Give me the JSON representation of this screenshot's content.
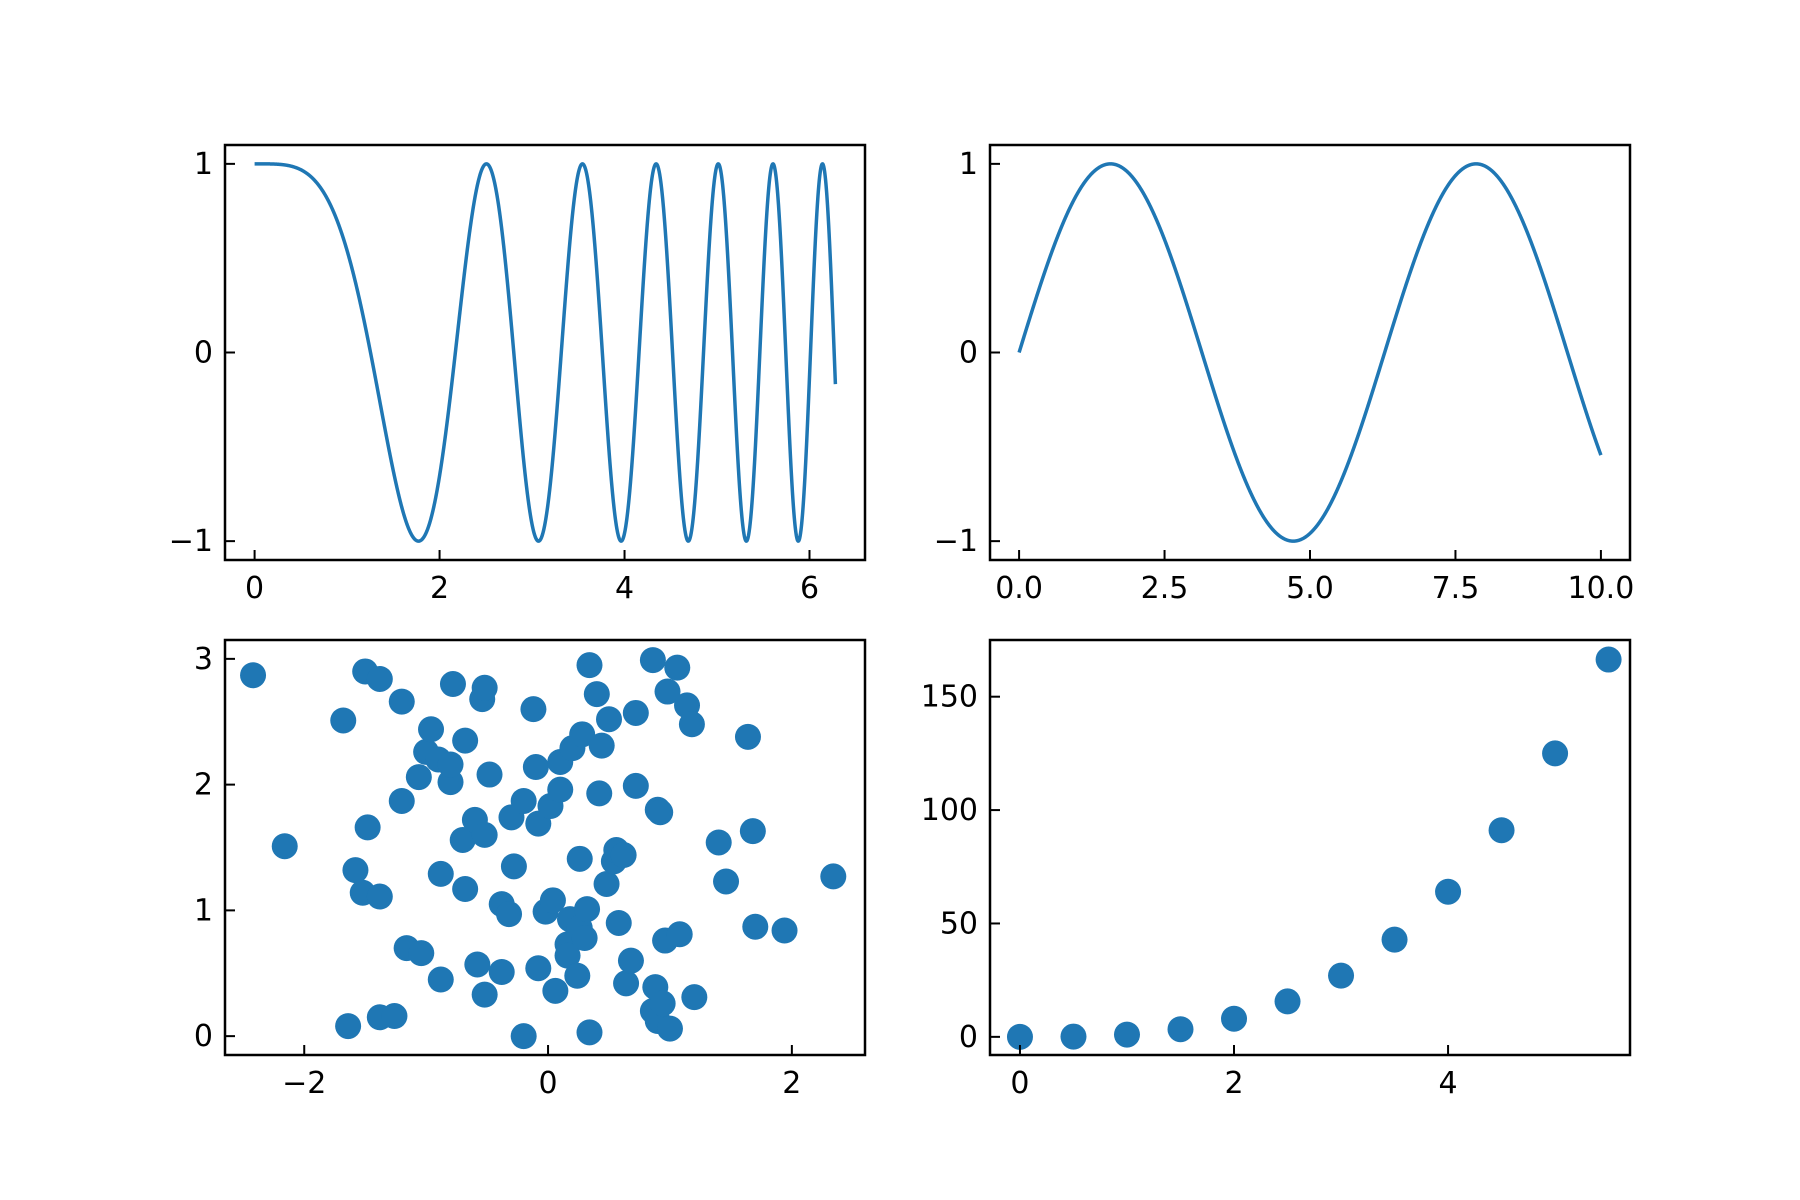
{
  "figure": {
    "background": "#ffffff",
    "accent": "#1f77b4"
  },
  "chart_data": [
    {
      "type": "line",
      "function": "cos(x^2)",
      "x_range": [
        0,
        6.28
      ],
      "xlim": [
        -0.32,
        6.6
      ],
      "ylim": [
        -1.1,
        1.1
      ],
      "xticks": [
        0,
        2,
        4,
        6
      ],
      "xtick_labels": [
        "0",
        "2",
        "4",
        "6"
      ],
      "yticks": [
        -1,
        0,
        1
      ],
      "ytick_labels": [
        "−1",
        "0",
        "1"
      ],
      "color": "#1f77b4",
      "grid": false
    },
    {
      "type": "line",
      "function": "sin(x)",
      "x_range": [
        0,
        10
      ],
      "xlim": [
        -0.5,
        10.5
      ],
      "ylim": [
        -1.1,
        1.1
      ],
      "xticks": [
        0,
        2.5,
        5,
        7.5,
        10
      ],
      "xtick_labels": [
        "0.0",
        "2.5",
        "5.0",
        "7.5",
        "10.0"
      ],
      "yticks": [
        -1,
        0,
        1
      ],
      "ytick_labels": [
        "−1",
        "0",
        "1"
      ],
      "color": "#1f77b4",
      "grid": false
    },
    {
      "type": "scatter",
      "xlim": [
        -2.65,
        2.6
      ],
      "ylim": [
        -0.15,
        3.15
      ],
      "xticks": [
        -2,
        0,
        2
      ],
      "xtick_labels": [
        "−2",
        "0",
        "2"
      ],
      "yticks": [
        0,
        1,
        2,
        3
      ],
      "ytick_labels": [
        "0",
        "1",
        "2",
        "3"
      ],
      "color": "#1f77b4",
      "grid": false,
      "points": [
        [
          -2.42,
          2.87
        ],
        [
          -2.16,
          1.51
        ],
        [
          -1.68,
          2.51
        ],
        [
          -1.64,
          0.08
        ],
        [
          -1.58,
          1.32
        ],
        [
          -1.52,
          1.14
        ],
        [
          -1.5,
          2.9
        ],
        [
          -1.48,
          1.66
        ],
        [
          -1.38,
          2.84
        ],
        [
          -1.38,
          1.11
        ],
        [
          -1.38,
          0.15
        ],
        [
          -1.26,
          0.16
        ],
        [
          -1.2,
          2.66
        ],
        [
          -1.2,
          1.87
        ],
        [
          -1.16,
          0.7
        ],
        [
          -1.06,
          2.06
        ],
        [
          -1.04,
          0.66
        ],
        [
          -1.0,
          2.26
        ],
        [
          -0.96,
          2.44
        ],
        [
          -0.9,
          2.2
        ],
        [
          -0.88,
          1.29
        ],
        [
          -0.88,
          0.45
        ],
        [
          -0.8,
          2.02
        ],
        [
          -0.8,
          2.16
        ],
        [
          -0.78,
          2.8
        ],
        [
          -0.7,
          1.56
        ],
        [
          -0.68,
          2.35
        ],
        [
          -0.68,
          1.17
        ],
        [
          -0.6,
          1.72
        ],
        [
          -0.58,
          0.57
        ],
        [
          -0.54,
          2.68
        ],
        [
          -0.52,
          2.77
        ],
        [
          -0.52,
          1.6
        ],
        [
          -0.52,
          0.33
        ],
        [
          -0.48,
          2.08
        ],
        [
          -0.38,
          1.05
        ],
        [
          -0.38,
          0.51
        ],
        [
          -0.32,
          0.97
        ],
        [
          -0.3,
          1.74
        ],
        [
          -0.28,
          1.35
        ],
        [
          -0.2,
          1.87
        ],
        [
          -0.2,
          0.0
        ],
        [
          -0.12,
          2.6
        ],
        [
          -0.1,
          2.14
        ],
        [
          -0.08,
          1.69
        ],
        [
          -0.08,
          0.54
        ],
        [
          -0.02,
          0.99
        ],
        [
          0.02,
          1.83
        ],
        [
          0.04,
          1.08
        ],
        [
          0.06,
          0.36
        ],
        [
          0.1,
          1.96
        ],
        [
          0.1,
          2.18
        ],
        [
          0.16,
          0.73
        ],
        [
          0.16,
          0.64
        ],
        [
          0.18,
          0.93
        ],
        [
          0.2,
          2.29
        ],
        [
          0.24,
          0.48
        ],
        [
          0.26,
          0.86
        ],
        [
          0.26,
          1.41
        ],
        [
          0.28,
          2.4
        ],
        [
          0.3,
          0.78
        ],
        [
          0.32,
          1.01
        ],
        [
          0.34,
          0.03
        ],
        [
          0.34,
          2.95
        ],
        [
          0.4,
          2.72
        ],
        [
          0.42,
          1.93
        ],
        [
          0.44,
          2.31
        ],
        [
          0.48,
          1.21
        ],
        [
          0.5,
          2.52
        ],
        [
          0.54,
          1.39
        ],
        [
          0.56,
          1.48
        ],
        [
          0.58,
          0.9
        ],
        [
          0.62,
          1.44
        ],
        [
          0.64,
          0.42
        ],
        [
          0.68,
          0.6
        ],
        [
          0.72,
          2.57
        ],
        [
          0.72,
          1.99
        ],
        [
          0.86,
          2.99
        ],
        [
          0.86,
          0.2
        ],
        [
          0.88,
          0.39
        ],
        [
          0.9,
          1.8
        ],
        [
          0.9,
          0.12
        ],
        [
          0.92,
          1.78
        ],
        [
          0.94,
          0.26
        ],
        [
          0.96,
          0.76
        ],
        [
          0.98,
          2.74
        ],
        [
          1.0,
          0.06
        ],
        [
          1.06,
          2.93
        ],
        [
          1.08,
          0.81
        ],
        [
          1.14,
          2.63
        ],
        [
          1.18,
          2.48
        ],
        [
          1.2,
          0.31
        ],
        [
          1.4,
          1.54
        ],
        [
          1.46,
          1.23
        ],
        [
          1.64,
          2.38
        ],
        [
          1.68,
          1.63
        ],
        [
          1.7,
          0.87
        ],
        [
          1.94,
          0.84
        ],
        [
          2.34,
          1.27
        ]
      ]
    },
    {
      "type": "scatter",
      "function": "x^3",
      "xlim": [
        -0.28,
        5.7
      ],
      "ylim": [
        -8,
        175
      ],
      "xticks": [
        0,
        2,
        4
      ],
      "xtick_labels": [
        "0",
        "2",
        "4"
      ],
      "yticks": [
        0,
        50,
        100,
        150
      ],
      "ytick_labels": [
        "0",
        "50",
        "100",
        "150"
      ],
      "color": "#1f77b4",
      "grid": false,
      "points": [
        [
          0,
          0
        ],
        [
          0.5,
          0.125
        ],
        [
          1,
          1
        ],
        [
          1.5,
          3.375
        ],
        [
          2,
          8
        ],
        [
          2.5,
          15.625
        ],
        [
          3,
          27
        ],
        [
          3.5,
          42.875
        ],
        [
          4,
          64
        ],
        [
          4.5,
          91.125
        ],
        [
          5,
          125
        ],
        [
          5.5,
          166.375
        ]
      ]
    }
  ]
}
